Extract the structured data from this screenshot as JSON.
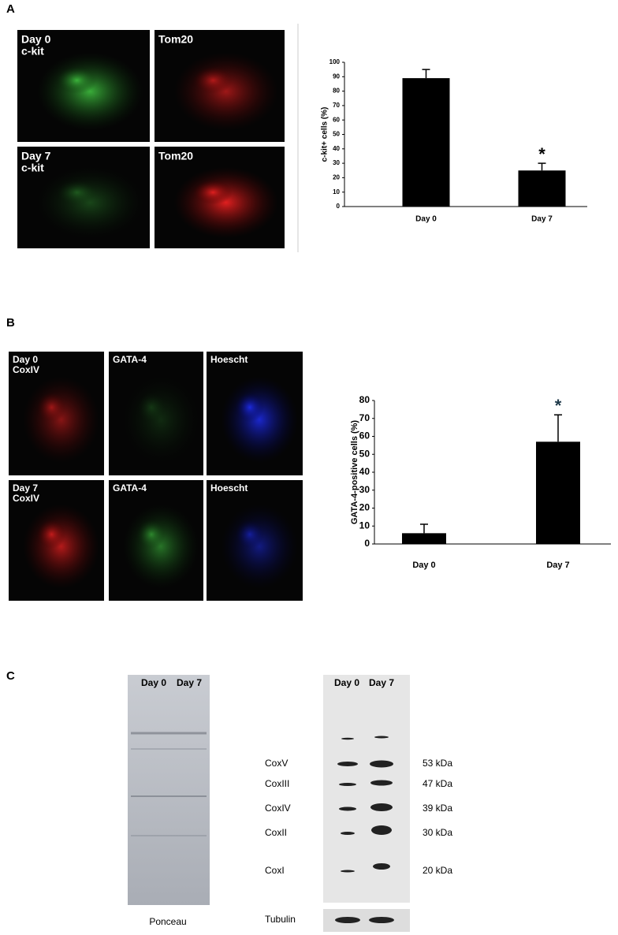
{
  "panel_a": {
    "label": "A",
    "images": [
      {
        "lines": [
          "Day 0",
          "c-kit"
        ]
      },
      {
        "lines": [
          "Tom20"
        ]
      },
      {
        "lines": [
          "Day 7",
          "c-kit"
        ]
      },
      {
        "lines": [
          "Tom20"
        ]
      }
    ]
  },
  "panel_b": {
    "label": "B",
    "images": [
      {
        "lines": [
          "Day 0",
          "CoxIV"
        ]
      },
      {
        "lines": [
          "GATA-4"
        ]
      },
      {
        "lines": [
          "Hoescht"
        ]
      },
      {
        "lines": [
          "Day 7",
          "CoxIV"
        ]
      },
      {
        "lines": [
          "GATA-4"
        ]
      },
      {
        "lines": [
          "Hoescht"
        ]
      }
    ]
  },
  "panel_c": {
    "label": "C",
    "ponceau": {
      "lanes": [
        "Day 0",
        "Day 7"
      ],
      "caption": "Ponceau"
    },
    "western": {
      "lanes": [
        "Day 0",
        "Day 7"
      ],
      "bands": [
        {
          "name": "CoxV",
          "size": "53 kDa"
        },
        {
          "name": "CoxIII",
          "size": "47 kDa"
        },
        {
          "name": "CoxIV",
          "size": "39 kDa"
        },
        {
          "name": "CoxII",
          "size": "30 kDa"
        },
        {
          "name": "CoxI",
          "size": "20 kDa"
        }
      ],
      "loading_control": "Tubulin"
    }
  },
  "chart_data": [
    {
      "type": "bar",
      "y_label": "c-kit+ cells (%)",
      "categories": [
        "Day 0",
        "Day 7"
      ],
      "values": [
        89,
        25
      ],
      "errors": [
        6,
        5
      ],
      "color": "#000000",
      "ylim": [
        0,
        100
      ],
      "yticks": [
        0,
        10,
        20,
        30,
        40,
        50,
        60,
        70,
        80,
        90,
        100
      ],
      "annotation": "*"
    },
    {
      "type": "bar",
      "y_label": "GATA-4-positive cells (%)",
      "categories": [
        "Day 0",
        "Day 7"
      ],
      "values": [
        6,
        57
      ],
      "errors": [
        5,
        15
      ],
      "color": "#000000",
      "ylim": [
        0,
        80
      ],
      "yticks": [
        0,
        10,
        20,
        30,
        40,
        50,
        60,
        70,
        80
      ],
      "annotation": "*"
    }
  ]
}
